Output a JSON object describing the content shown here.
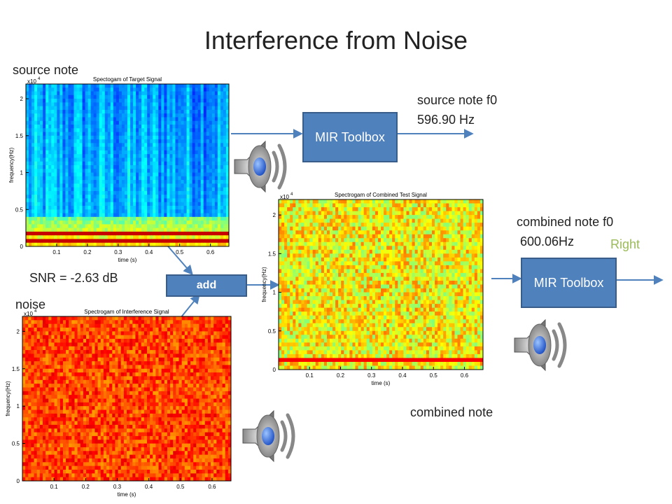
{
  "title": "Interference from Noise",
  "labels": {
    "source_note": "source note",
    "noise": "noise",
    "combined_note": "combined note",
    "snr": "SNR = -2.63 dB",
    "source_f0_label": "source note f0",
    "source_f0_value": "596.90 Hz",
    "combined_f0_label": "combined note f0",
    "combined_f0_value": "600.06Hz",
    "result": "Right"
  },
  "boxes": [
    "MIR Toolbox",
    "MIR Toolbox",
    "add"
  ],
  "spectrograms": [
    {
      "title": "Spectogam of Target Signal",
      "xlabel": "time (s)",
      "ylabel": "frequency(Hz)",
      "scale": "x10",
      "exponent": 4,
      "xlim": [
        0,
        0.66
      ],
      "ylim": [
        0,
        2.2
      ],
      "xticks": [
        0.1,
        0.2,
        0.3,
        0.4,
        0.5,
        0.6
      ],
      "yticks": [
        0,
        0.5,
        1,
        1.5,
        2
      ]
    },
    {
      "title": "Spectrogam of Combined Test Signal",
      "xlabel": "time (s)",
      "ylabel": "frequency(Hz)",
      "scale": "x10",
      "exponent": 4,
      "xlim": [
        0,
        0.66
      ],
      "ylim": [
        0,
        2.2
      ],
      "xticks": [
        0.1,
        0.2,
        0.3,
        0.4,
        0.5,
        0.6
      ],
      "yticks": [
        0,
        0.5,
        1,
        1.5,
        2
      ]
    },
    {
      "title": "Spectrogam of Interference Signal",
      "xlabel": "time (s)",
      "ylabel": "frequency(Hz)",
      "scale": "x10",
      "exponent": 4,
      "xlim": [
        0,
        0.66
      ],
      "ylim": [
        0,
        2.2
      ],
      "xticks": [
        0.1,
        0.2,
        0.3,
        0.4,
        0.5,
        0.6
      ],
      "yticks": [
        0,
        0.5,
        1,
        1.5,
        2
      ]
    }
  ]
}
